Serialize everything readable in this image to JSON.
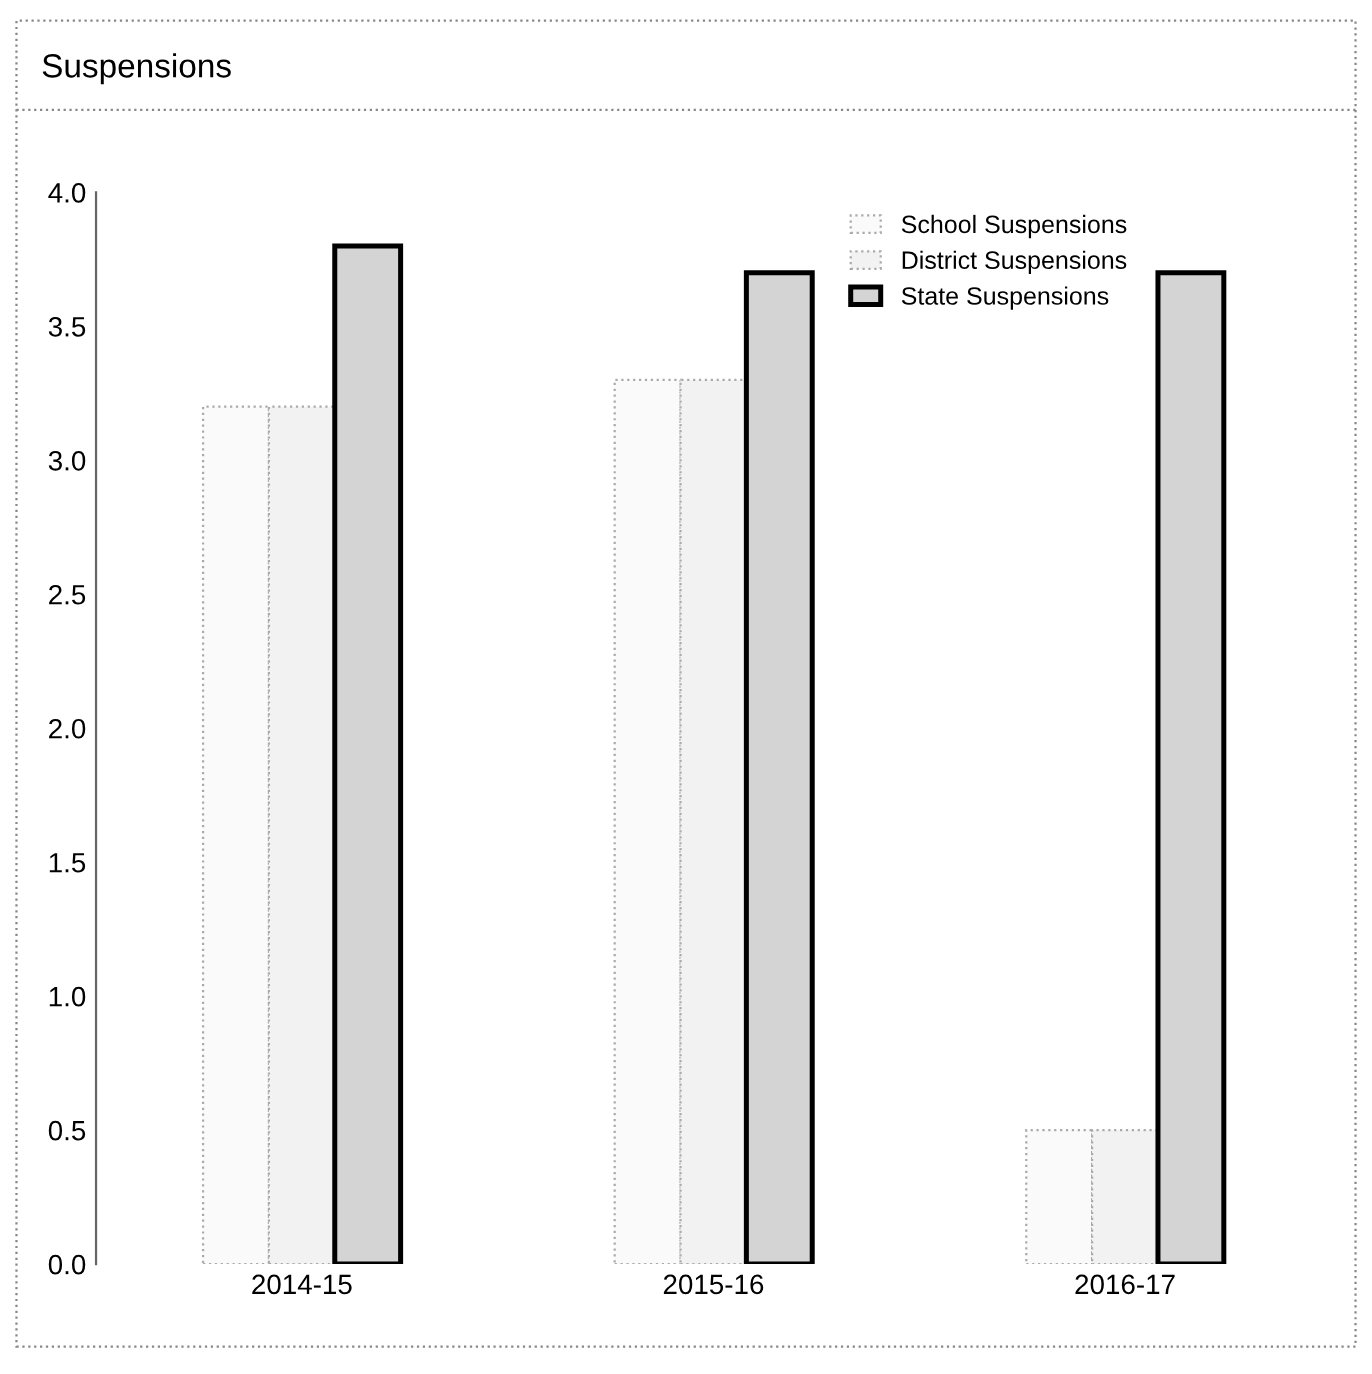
{
  "chart_data": {
    "type": "bar",
    "title": "Suspensions",
    "categories": [
      "2014-15",
      "2015-16",
      "2016-17"
    ],
    "series": [
      {
        "name": "School Suspensions",
        "color": "#fafafa",
        "values": [
          3.2,
          3.3,
          0.5
        ]
      },
      {
        "name": "District Suspensions",
        "color": "#f2f2f2",
        "values": [
          3.2,
          3.3,
          0.5
        ]
      },
      {
        "name": "State Suspensions",
        "color": "#d4d4d4",
        "values": [
          3.8,
          3.7,
          3.7
        ]
      }
    ],
    "ylim": [
      0,
      4.0
    ],
    "yticks": [
      {
        "value": 0,
        "label": "0.0"
      },
      {
        "value": 0.5,
        "label": "0.5"
      },
      {
        "value": 1.0,
        "label": "1.0"
      },
      {
        "value": 1.5,
        "label": "1.5"
      },
      {
        "value": 2.0,
        "label": "2.0"
      },
      {
        "value": 2.5,
        "label": "2.5"
      },
      {
        "value": 3.0,
        "label": "3.0"
      },
      {
        "value": 3.5,
        "label": "3.5"
      },
      {
        "value": 4.0,
        "label": "4.0"
      }
    ],
    "grid": false,
    "legend": "top right"
  }
}
